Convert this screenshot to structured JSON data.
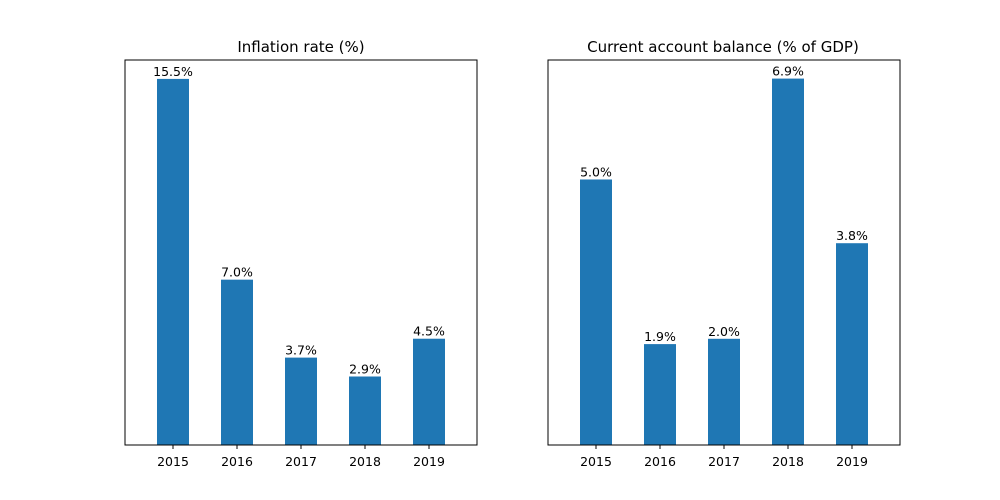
{
  "colors": {
    "bar": "#1f77b4",
    "axes": "#000000",
    "background": "#ffffff"
  },
  "chart_data": [
    {
      "type": "bar",
      "title": "Inflation rate (%)",
      "xlabel": "",
      "ylabel": "",
      "categories": [
        "2015",
        "2016",
        "2017",
        "2018",
        "2019"
      ],
      "values": [
        15.5,
        7.0,
        3.7,
        2.9,
        4.5
      ],
      "labels": [
        "15.5%",
        "7.0%",
        "3.7%",
        "2.9%",
        "4.5%"
      ],
      "ylim": [
        0,
        16.3
      ],
      "y_ticks_visible": false,
      "grid": false
    },
    {
      "type": "bar",
      "title": "Current account balance (% of GDP)",
      "xlabel": "",
      "ylabel": "",
      "categories": [
        "2015",
        "2016",
        "2017",
        "2018",
        "2019"
      ],
      "values": [
        5.0,
        1.9,
        2.0,
        6.9,
        3.8
      ],
      "labels": [
        "5.0%",
        "1.9%",
        "2.0%",
        "6.9%",
        "3.8%"
      ],
      "ylim": [
        0,
        7.25
      ],
      "y_ticks_visible": false,
      "grid": false
    }
  ]
}
